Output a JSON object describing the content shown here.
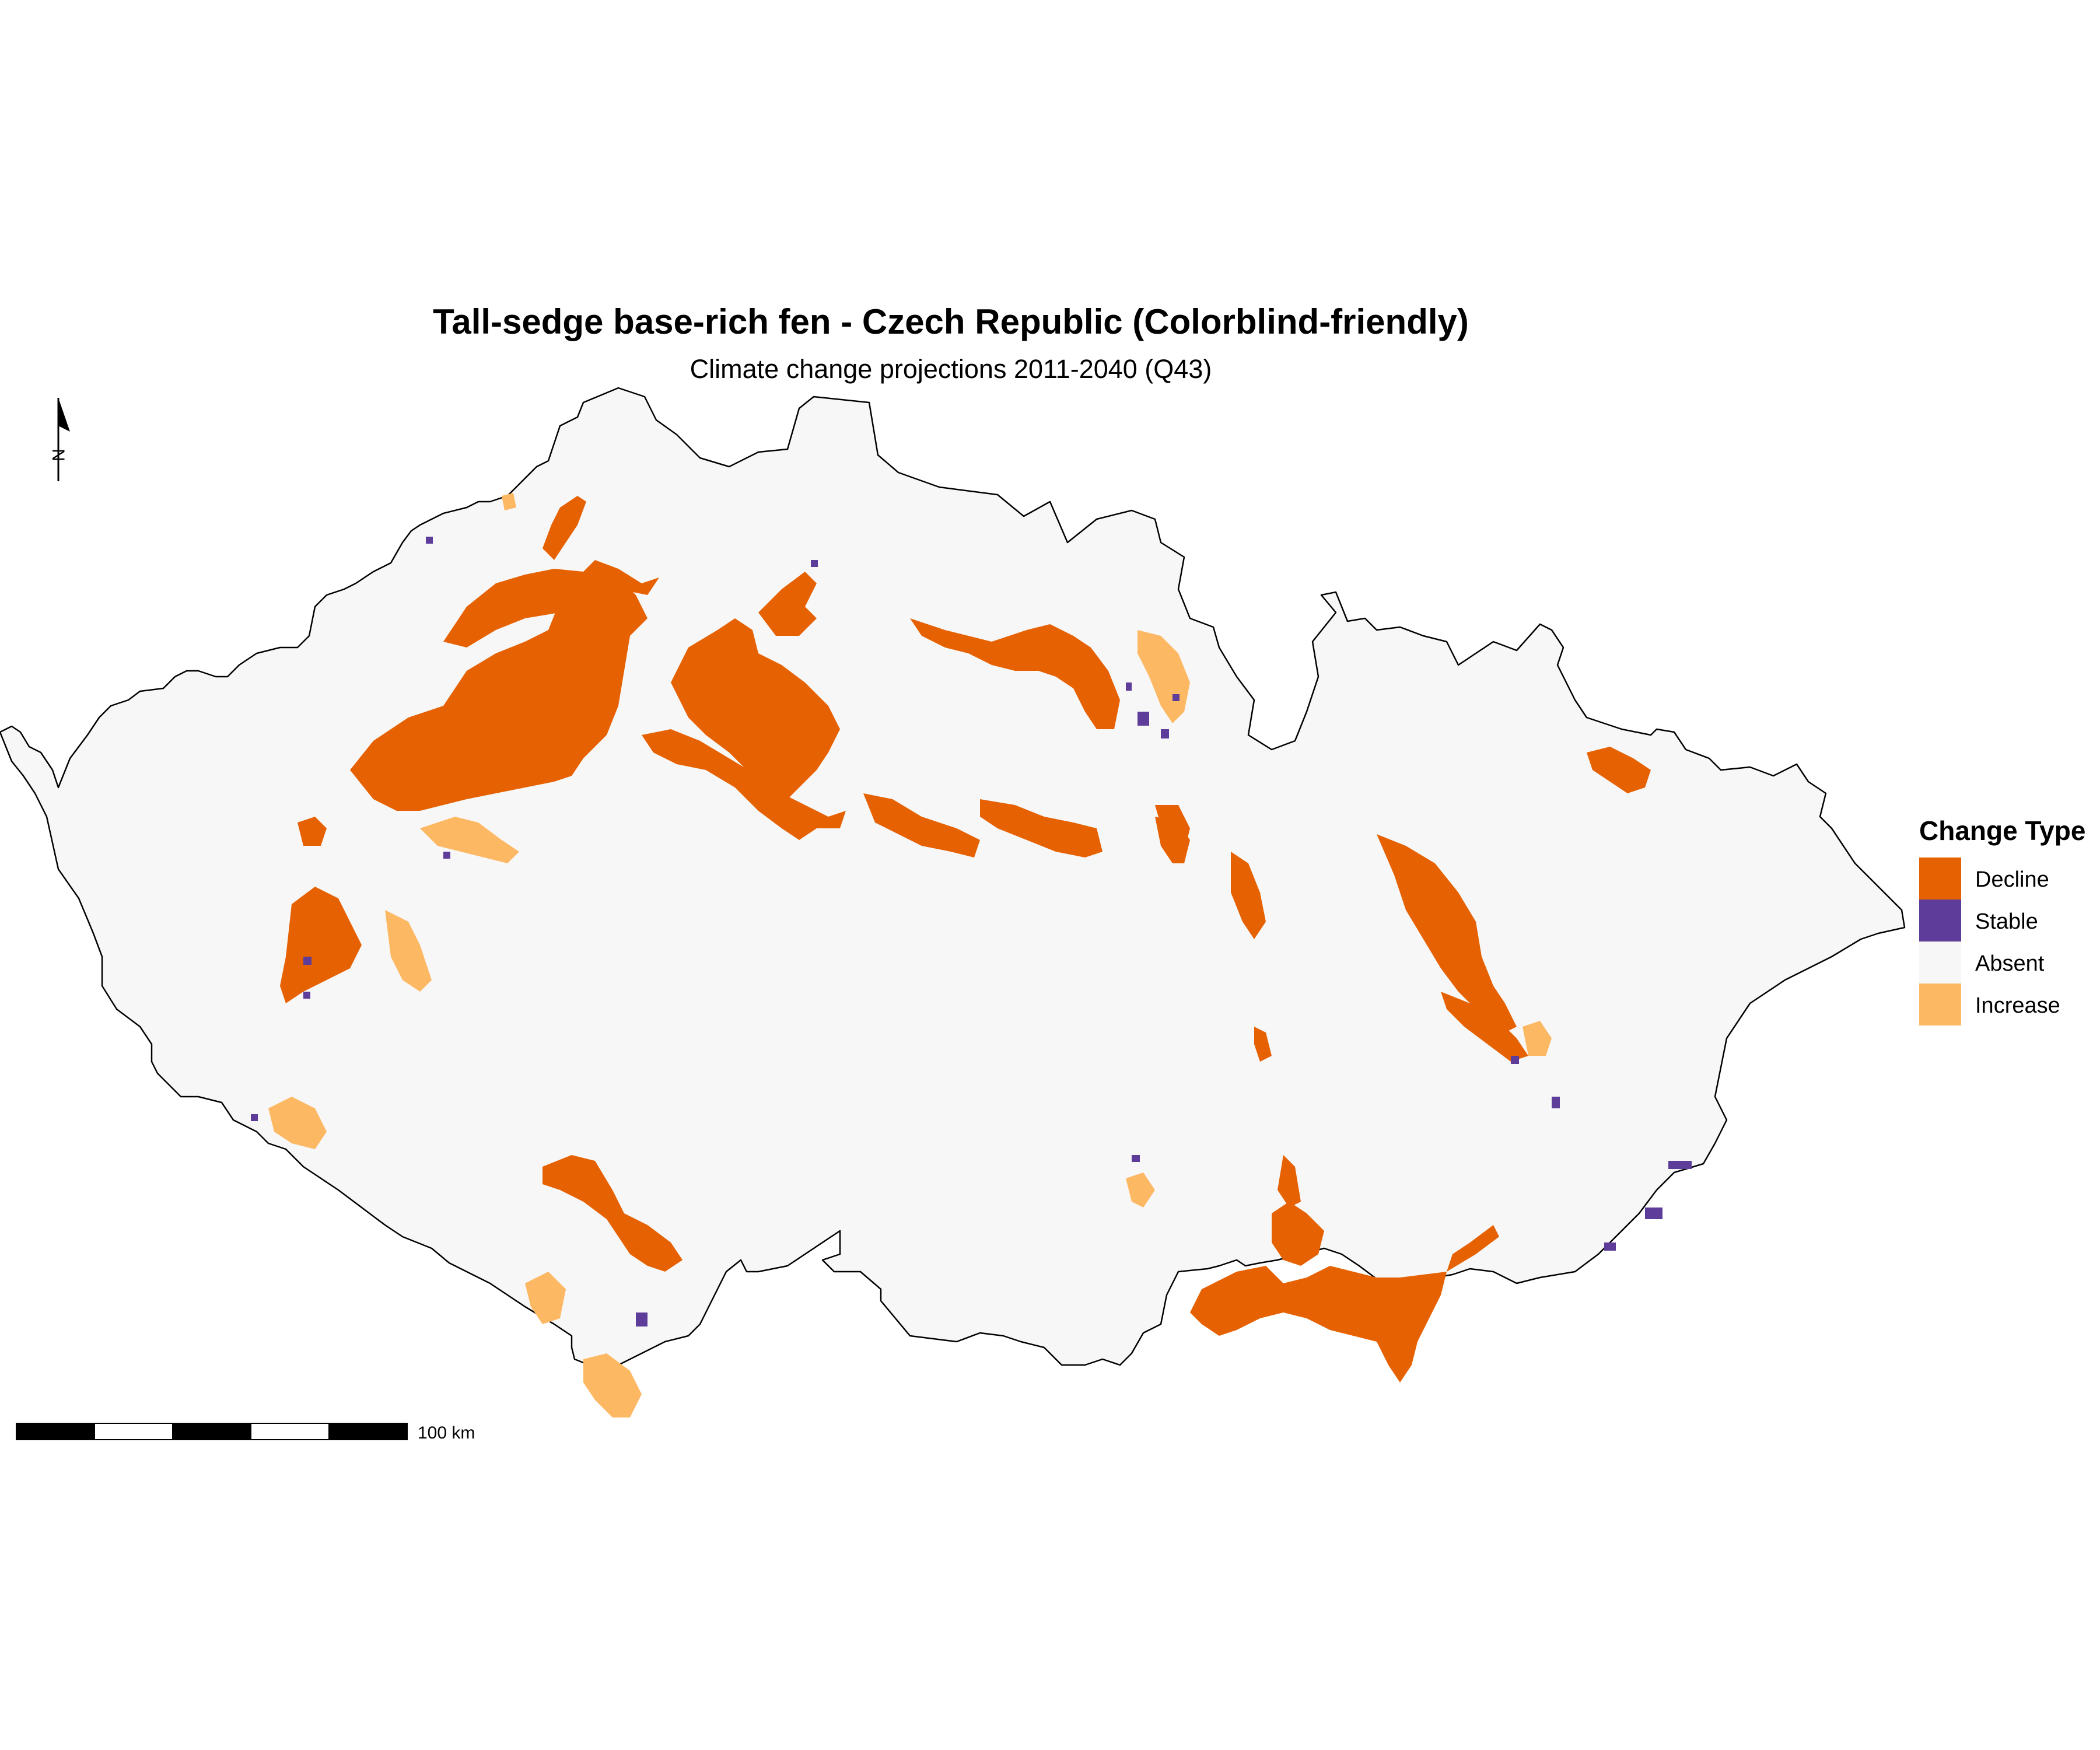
{
  "title": "Tall-sedge base-rich fen - Czech Republic (Colorblind-friendly)",
  "subtitle": "Climate change projections 2011-2040 (Q43)",
  "north_arrow": {
    "label": "N"
  },
  "scale_bar": {
    "label": "100 km"
  },
  "legend": {
    "title": "Change Type",
    "items": [
      {
        "label": "Decline",
        "color": "#E66101"
      },
      {
        "label": "Stable",
        "color": "#5E3C99"
      },
      {
        "label": "Absent",
        "color": "#F7F7F7"
      },
      {
        "label": "Increase",
        "color": "#FDB863"
      }
    ]
  }
}
